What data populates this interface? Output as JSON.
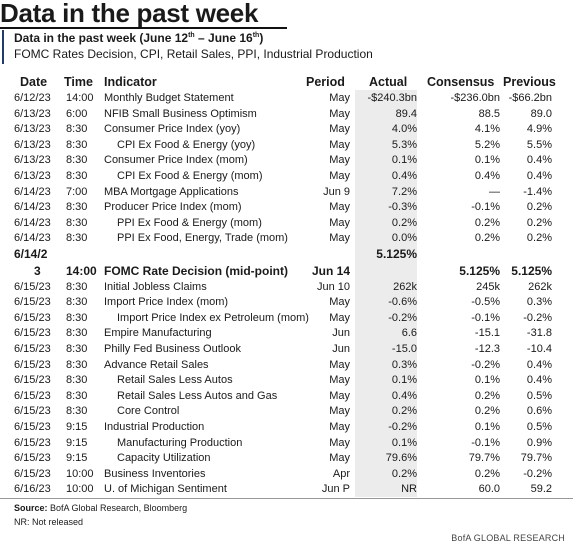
{
  "page_title": "Data in the past week",
  "subtitle": {
    "main": "Data in the past week (June 12",
    "sup1": "th",
    "mid": " – June 16",
    "sup2": "th",
    "end": ")"
  },
  "description": "FOMC Rates Decision, CPI, Retail Sales, PPI, Industrial Production",
  "columns": {
    "date": "Date",
    "time": "Time",
    "indicator": "Indicator",
    "period": "Period",
    "actual": "Actual",
    "consensus": "Consensus",
    "previous": "Previous"
  },
  "rows": [
    {
      "date": "6/12/23",
      "time": "14:00",
      "indicator": "Monthly Budget Statement",
      "indent": 0,
      "period": "May",
      "actual": "-$240.3bn",
      "consensus": "-$236.0bn",
      "previous": "-$66.2bn"
    },
    {
      "date": "6/13/23",
      "time": "6:00",
      "indicator": "NFIB Small Business Optimism",
      "indent": 0,
      "period": "May",
      "actual": "89.4",
      "consensus": "88.5",
      "previous": "89.0"
    },
    {
      "date": "6/13/23",
      "time": "8:30",
      "indicator": "Consumer Price Index (yoy)",
      "indent": 0,
      "period": "May",
      "actual": "4.0%",
      "consensus": "4.1%",
      "previous": "4.9%"
    },
    {
      "date": "6/13/23",
      "time": "8:30",
      "indicator": "CPI Ex Food & Energy (yoy)",
      "indent": 1,
      "period": "May",
      "actual": "5.3%",
      "consensus": "5.2%",
      "previous": "5.5%"
    },
    {
      "date": "6/13/23",
      "time": "8:30",
      "indicator": "Consumer Price Index (mom)",
      "indent": 0,
      "period": "May",
      "actual": "0.1%",
      "consensus": "0.1%",
      "previous": "0.4%"
    },
    {
      "date": "6/13/23",
      "time": "8:30",
      "indicator": "CPI Ex Food & Energy (mom)",
      "indent": 1,
      "period": "May",
      "actual": "0.4%",
      "consensus": "0.4%",
      "previous": "0.4%"
    },
    {
      "date": "6/14/23",
      "time": "7:00",
      "indicator": "MBA Mortgage Applications",
      "indent": 0,
      "period": "Jun 9",
      "actual": "7.2%",
      "consensus": "—",
      "previous": "-1.4%"
    },
    {
      "date": "6/14/23",
      "time": "8:30",
      "indicator": "Producer Price Index (mom)",
      "indent": 0,
      "period": "May",
      "actual": "-0.3%",
      "consensus": "-0.1%",
      "previous": "0.2%"
    },
    {
      "date": "6/14/23",
      "time": "8:30",
      "indicator": "PPI Ex Food & Energy (mom)",
      "indent": 1,
      "period": "May",
      "actual": "0.2%",
      "consensus": "0.2%",
      "previous": "0.2%"
    },
    {
      "date": "6/14/23",
      "time": "8:30",
      "indicator": "PPI Ex Food, Energy, Trade (mom)",
      "indent": 1,
      "period": "May",
      "actual": "0.0%",
      "consensus": "0.2%",
      "previous": "0.2%"
    },
    {
      "date_line1": "6/14/2",
      "date_line2": "3",
      "time": "14:00",
      "indicator": "FOMC Rate Decision (mid-point)",
      "indent": 0,
      "period": "Jun 14",
      "actual": "5.125%",
      "consensus": "5.125%",
      "previous": "5.125%",
      "highlight": true
    },
    {
      "date": "6/15/23",
      "time": "8:30",
      "indicator": "Initial Jobless Claims",
      "indent": 0,
      "period": "Jun 10",
      "actual": "262k",
      "consensus": "245k",
      "previous": "262k"
    },
    {
      "date": "6/15/23",
      "time": "8:30",
      "indicator": "Import Price Index (mom)",
      "indent": 0,
      "period": "May",
      "actual": "-0.6%",
      "consensus": "-0.5%",
      "previous": "0.3%"
    },
    {
      "date": "6/15/23",
      "time": "8:30",
      "indicator": "Import Price Index ex Petroleum (mom)",
      "indent": 1,
      "period": "May",
      "actual": "-0.2%",
      "consensus": "-0.1%",
      "previous": "-0.2%"
    },
    {
      "date": "6/15/23",
      "time": "8:30",
      "indicator": "Empire Manufacturing",
      "indent": 0,
      "period": "Jun",
      "actual": "6.6",
      "consensus": "-15.1",
      "previous": "-31.8"
    },
    {
      "date": "6/15/23",
      "time": "8:30",
      "indicator": "Philly Fed Business Outlook",
      "indent": 0,
      "period": "Jun",
      "actual": "-15.0",
      "consensus": "-12.3",
      "previous": "-10.4"
    },
    {
      "date": "6/15/23",
      "time": "8:30",
      "indicator": "Advance Retail Sales",
      "indent": 0,
      "period": "May",
      "actual": "0.3%",
      "consensus": "-0.2%",
      "previous": "0.4%"
    },
    {
      "date": "6/15/23",
      "time": "8:30",
      "indicator": "Retail Sales Less Autos",
      "indent": 1,
      "period": "May",
      "actual": "0.1%",
      "consensus": "0.1%",
      "previous": "0.4%"
    },
    {
      "date": "6/15/23",
      "time": "8:30",
      "indicator": "Retail Sales Less Autos and Gas",
      "indent": 1,
      "period": "May",
      "actual": "0.4%",
      "consensus": "0.2%",
      "previous": "0.5%"
    },
    {
      "date": "6/15/23",
      "time": "8:30",
      "indicator": "Core Control",
      "indent": 1,
      "period": "May",
      "actual": "0.2%",
      "consensus": "0.2%",
      "previous": "0.6%"
    },
    {
      "date": "6/15/23",
      "time": "9:15",
      "indicator": "Industrial Production",
      "indent": 0,
      "period": "May",
      "actual": "-0.2%",
      "consensus": "0.1%",
      "previous": "0.5%"
    },
    {
      "date": "6/15/23",
      "time": "9:15",
      "indicator": "Manufacturing Production",
      "indent": 1,
      "period": "May",
      "actual": "0.1%",
      "consensus": "-0.1%",
      "previous": "0.9%"
    },
    {
      "date": "6/15/23",
      "time": "9:15",
      "indicator": "Capacity Utilization",
      "indent": 1,
      "period": "May",
      "actual": "79.6%",
      "consensus": "79.7%",
      "previous": "79.7%"
    },
    {
      "date": "6/15/23",
      "time": "10:00",
      "indicator": "Business Inventories",
      "indent": 0,
      "period": "Apr",
      "actual": "0.2%",
      "consensus": "0.2%",
      "previous": "-0.2%"
    },
    {
      "date": "6/16/23",
      "time": "10:00",
      "indicator": "U. of Michigan Sentiment",
      "indent": 0,
      "period": "Jun P",
      "actual": "NR",
      "consensus": "60.0",
      "previous": "59.2"
    }
  ],
  "source_label": "Source:",
  "source_text": " BofA Global Research, Bloomberg",
  "note": "NR: Not released",
  "brand": "BofA GLOBAL RESEARCH",
  "colors": {
    "accent": "#1f3a6b",
    "actual_bg": "#ececec"
  }
}
